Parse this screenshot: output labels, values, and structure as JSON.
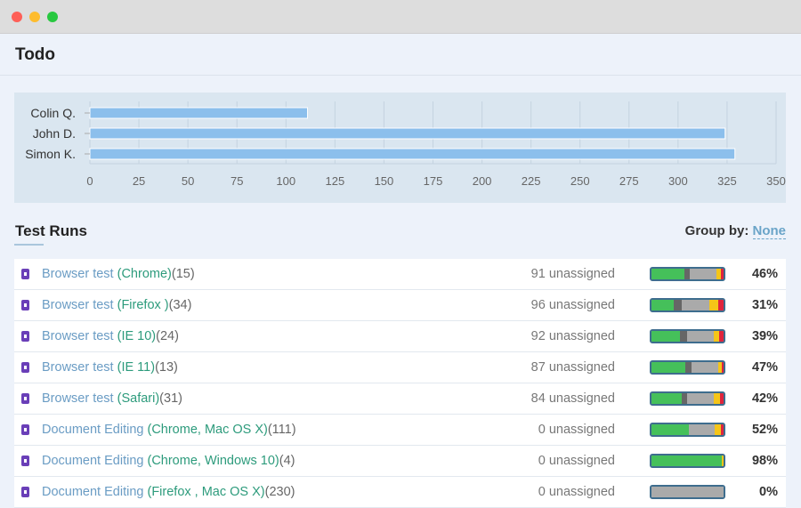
{
  "window": {
    "controls": [
      "close",
      "minimize",
      "maximize"
    ]
  },
  "header": {
    "title": "Todo"
  },
  "chart_data": {
    "type": "bar",
    "orientation": "horizontal",
    "categories": [
      "Colin Q.",
      "John D.",
      "Simon K."
    ],
    "values": [
      111,
      324,
      329
    ],
    "xlim": [
      0,
      350
    ],
    "xticks": [
      0,
      25,
      50,
      75,
      100,
      125,
      150,
      175,
      200,
      225,
      250,
      275,
      300,
      325,
      350
    ],
    "grid": true,
    "color": "#8cbfec"
  },
  "section": {
    "title": "Test Runs",
    "group_by_label": "Group by:",
    "group_by_value": "None"
  },
  "colors": {
    "passed": "#45c05a",
    "blocked": "#666666",
    "untested": "#aaaaaa",
    "retest": "#f5c518",
    "failed": "#e0243c"
  },
  "runs": [
    {
      "name": "Browser test",
      "config": "(Chrome)",
      "count": "(15)",
      "unassigned": "91 unassigned",
      "percent": "46%",
      "segments": [
        46,
        7,
        37,
        6,
        4
      ]
    },
    {
      "name": "Browser test",
      "config": "(Firefox )",
      "count": "(34)",
      "unassigned": "96 unassigned",
      "percent": "31%",
      "segments": [
        31,
        11,
        38,
        12,
        8
      ]
    },
    {
      "name": "Browser test",
      "config": "(IE 10)",
      "count": "(24)",
      "unassigned": "92 unassigned",
      "percent": "39%",
      "segments": [
        39,
        10,
        37,
        8,
        6
      ]
    },
    {
      "name": "Browser test",
      "config": "(IE 11)",
      "count": "(13)",
      "unassigned": "87 unassigned",
      "percent": "47%",
      "segments": [
        47,
        9,
        36,
        6,
        2
      ]
    },
    {
      "name": "Browser test",
      "config": "(Safari)",
      "count": "(31)",
      "unassigned": "84 unassigned",
      "percent": "42%",
      "segments": [
        42,
        8,
        37,
        8,
        5
      ]
    },
    {
      "name": "Document Editing",
      "config": "(Chrome, Mac OS X)",
      "count": "(111)",
      "unassigned": "0 unassigned",
      "percent": "52%",
      "segments": [
        52,
        0,
        36,
        8,
        4
      ]
    },
    {
      "name": "Document Editing",
      "config": "(Chrome, Windows 10)",
      "count": "(4)",
      "unassigned": "0 unassigned",
      "percent": "98%",
      "segments": [
        98,
        0,
        0,
        2,
        0
      ]
    },
    {
      "name": "Document Editing",
      "config": "(Firefox , Mac OS X)",
      "count": "(230)",
      "unassigned": "0 unassigned",
      "percent": "0%",
      "segments": [
        0,
        0,
        100,
        0,
        0
      ]
    }
  ]
}
